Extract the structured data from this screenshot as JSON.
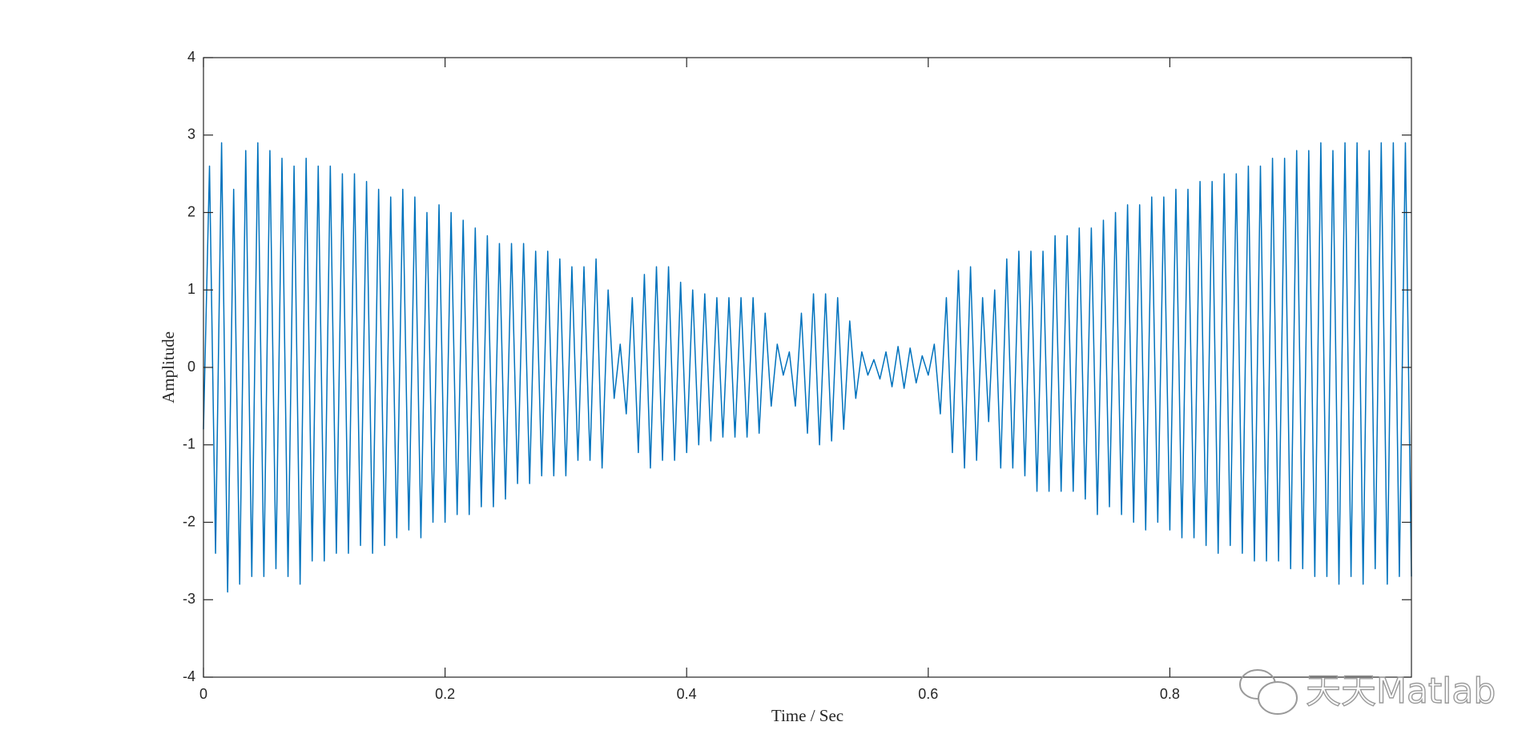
{
  "chart_data": {
    "type": "line",
    "xlabel": "Time / Sec",
    "ylabel": "Amplitude",
    "watermark": "天天Matlab",
    "xlim": [
      0,
      1
    ],
    "ylim": [
      -4,
      4
    ],
    "xticks": [
      0,
      0.2,
      0.4,
      0.6,
      0.8
    ],
    "yticks": [
      -4,
      -3,
      -2,
      -1,
      0,
      1,
      2,
      3,
      4
    ],
    "x": [
      0,
      0.005,
      0.01,
      0.015,
      0.02,
      0.025,
      0.03,
      0.035,
      0.04,
      0.045,
      0.05,
      0.055,
      0.06,
      0.065,
      0.07,
      0.075,
      0.08,
      0.085,
      0.09,
      0.095,
      0.1,
      0.105,
      0.11,
      0.115,
      0.12,
      0.125,
      0.13,
      0.135,
      0.14,
      0.145,
      0.15,
      0.155,
      0.16,
      0.165,
      0.17,
      0.175,
      0.18,
      0.185,
      0.19,
      0.195,
      0.2,
      0.205,
      0.21,
      0.215,
      0.22,
      0.225,
      0.23,
      0.235,
      0.24,
      0.245,
      0.25,
      0.255,
      0.26,
      0.265,
      0.27,
      0.275,
      0.28,
      0.285,
      0.29,
      0.295,
      0.3,
      0.305,
      0.31,
      0.315,
      0.32,
      0.325,
      0.33,
      0.335,
      0.34,
      0.345,
      0.35,
      0.355,
      0.36,
      0.365,
      0.37,
      0.375,
      0.38,
      0.385,
      0.39,
      0.395,
      0.4,
      0.405,
      0.41,
      0.415,
      0.42,
      0.425,
      0.43,
      0.435,
      0.44,
      0.445,
      0.45,
      0.455,
      0.46,
      0.465,
      0.47,
      0.475,
      0.48,
      0.485,
      0.49,
      0.495,
      0.5,
      0.505,
      0.51,
      0.515,
      0.52,
      0.525,
      0.53,
      0.535,
      0.54,
      0.545,
      0.55,
      0.555,
      0.56,
      0.565,
      0.57,
      0.575,
      0.58,
      0.585,
      0.59,
      0.595,
      0.6,
      0.605,
      0.61,
      0.615,
      0.62,
      0.625,
      0.63,
      0.635,
      0.64,
      0.645,
      0.65,
      0.655,
      0.66,
      0.665,
      0.67,
      0.675,
      0.68,
      0.685,
      0.69,
      0.695,
      0.7,
      0.705,
      0.71,
      0.715,
      0.72,
      0.725,
      0.73,
      0.735,
      0.74,
      0.745,
      0.75,
      0.755,
      0.76,
      0.765,
      0.77,
      0.775,
      0.78,
      0.785,
      0.79,
      0.795,
      0.8,
      0.805,
      0.81,
      0.815,
      0.82,
      0.825,
      0.83,
      0.835,
      0.84,
      0.845,
      0.85,
      0.855,
      0.86,
      0.865,
      0.87,
      0.875,
      0.88,
      0.885,
      0.89,
      0.895,
      0.9,
      0.905,
      0.91,
      0.915,
      0.92,
      0.925,
      0.93,
      0.935,
      0.94,
      0.945,
      0.95,
      0.955,
      0.96,
      0.965,
      0.97,
      0.975,
      0.98,
      0.985,
      0.99,
      0.995,
      1
    ],
    "series": [
      {
        "color": "#0072bd",
        "values": [
          -0.8,
          2.6,
          -2.4,
          2.9,
          -2.9,
          2.3,
          -2.8,
          2.8,
          -2.7,
          2.9,
          -2.7,
          2.8,
          -2.6,
          2.7,
          -2.7,
          2.6,
          -2.8,
          2.7,
          -2.5,
          2.6,
          -2.5,
          2.6,
          -2.4,
          2.5,
          -2.4,
          2.5,
          -2.3,
          2.4,
          -2.4,
          2.3,
          -2.3,
          2.2,
          -2.2,
          2.3,
          -2.1,
          2.2,
          -2.2,
          2.0,
          -2.0,
          2.1,
          -2.0,
          2.0,
          -1.9,
          1.9,
          -1.9,
          1.8,
          -1.8,
          1.7,
          -1.8,
          1.6,
          -1.7,
          1.6,
          -1.5,
          1.6,
          -1.5,
          1.5,
          -1.4,
          1.5,
          -1.4,
          1.4,
          -1.4,
          1.3,
          -1.2,
          1.3,
          -1.2,
          1.4,
          -1.3,
          1.0,
          -0.4,
          0.3,
          -0.6,
          0.9,
          -1.1,
          1.2,
          -1.3,
          1.3,
          -1.2,
          1.3,
          -1.2,
          1.1,
          -1.1,
          1.0,
          -1.0,
          0.95,
          -0.95,
          0.9,
          -0.9,
          0.9,
          -0.9,
          0.9,
          -0.9,
          0.9,
          -0.85,
          0.7,
          -0.5,
          0.3,
          -0.1,
          0.2,
          -0.5,
          0.7,
          -0.85,
          0.95,
          -1.0,
          0.95,
          -0.95,
          0.9,
          -0.8,
          0.6,
          -0.4,
          0.2,
          -0.1,
          0.1,
          -0.15,
          0.2,
          -0.25,
          0.27,
          -0.27,
          0.25,
          -0.2,
          0.15,
          -0.1,
          0.3,
          -0.6,
          0.9,
          -1.1,
          1.25,
          -1.3,
          1.3,
          -1.2,
          0.9,
          -0.7,
          1.0,
          -1.3,
          1.4,
          -1.3,
          1.5,
          -1.4,
          1.5,
          -1.6,
          1.5,
          -1.6,
          1.7,
          -1.6,
          1.7,
          -1.6,
          1.8,
          -1.7,
          1.8,
          -1.9,
          1.9,
          -1.8,
          2.0,
          -1.9,
          2.1,
          -2.0,
          2.1,
          -2.1,
          2.2,
          -2.0,
          2.2,
          -2.1,
          2.3,
          -2.2,
          2.3,
          -2.2,
          2.4,
          -2.3,
          2.4,
          -2.4,
          2.5,
          -2.3,
          2.5,
          -2.4,
          2.6,
          -2.5,
          2.6,
          -2.5,
          2.7,
          -2.5,
          2.7,
          -2.6,
          2.8,
          -2.6,
          2.8,
          -2.7,
          2.9,
          -2.7,
          2.8,
          -2.8,
          2.9,
          -2.7,
          2.9,
          -2.8,
          2.8,
          -2.6,
          2.9,
          -2.8,
          2.9,
          -2.7,
          2.9,
          -2.7
        ]
      }
    ]
  }
}
